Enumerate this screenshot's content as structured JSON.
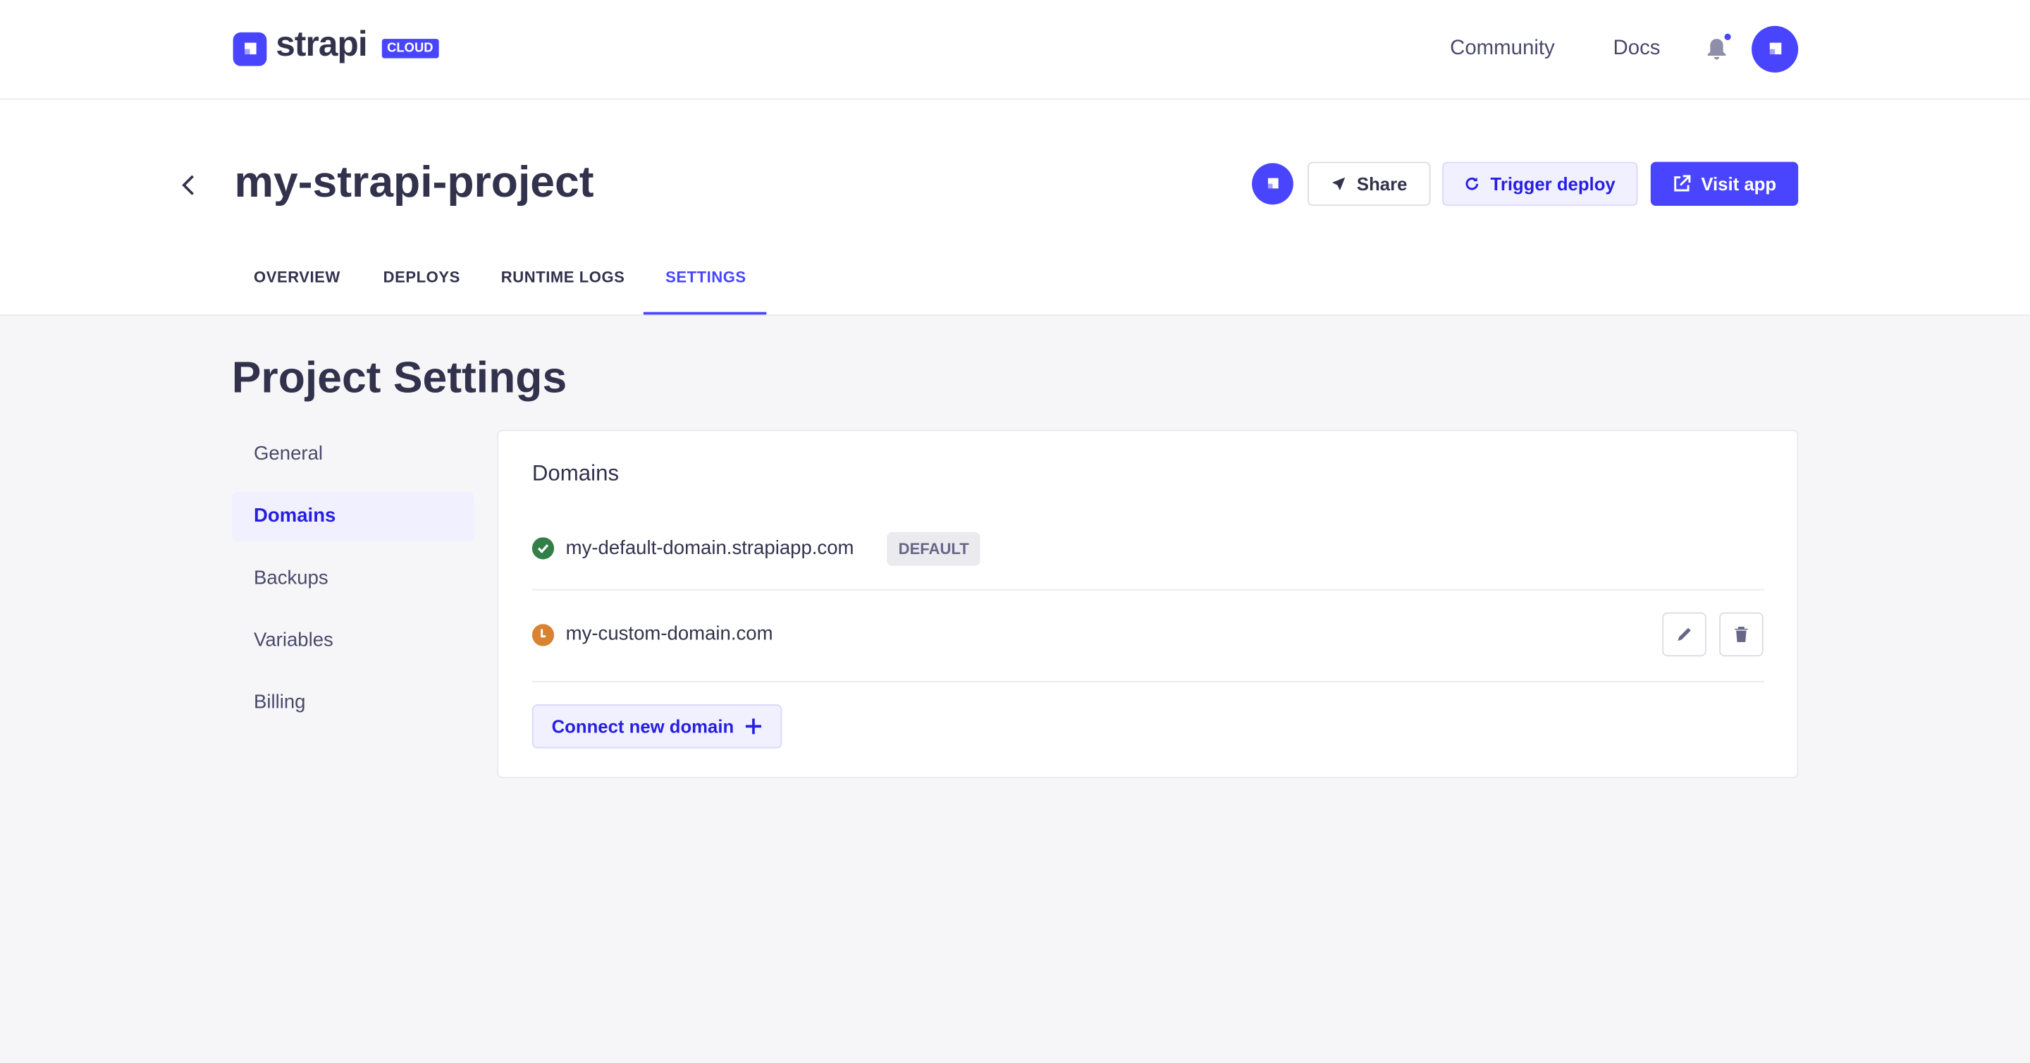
{
  "header": {
    "brand": "strapi",
    "badge": "CLOUD",
    "links": [
      "Community",
      "Docs"
    ],
    "notification_dot": true
  },
  "project": {
    "title": "my-strapi-project",
    "actions": {
      "share": "Share",
      "trigger": "Trigger deploy",
      "visit": "Visit app"
    }
  },
  "tabs": [
    {
      "label": "OVERVIEW"
    },
    {
      "label": "DEPLOYS"
    },
    {
      "label": "RUNTIME LOGS"
    },
    {
      "label": "SETTINGS",
      "active": true
    }
  ],
  "page_title": "Project Settings",
  "sidebar": {
    "items": [
      {
        "label": "General"
      },
      {
        "label": "Domains",
        "active": true
      },
      {
        "label": "Backups"
      },
      {
        "label": "Variables"
      },
      {
        "label": "Billing"
      }
    ]
  },
  "domains": {
    "title": "Domains",
    "items": [
      {
        "name": "my-default-domain.strapiapp.com",
        "status": "verified",
        "badge": "DEFAULT"
      },
      {
        "name": "my-custom-domain.com",
        "status": "pending"
      }
    ],
    "connect_label": "Connect new domain"
  },
  "colors": {
    "primary": "#4945ff",
    "success": "#328048",
    "warning": "#d9822f"
  }
}
